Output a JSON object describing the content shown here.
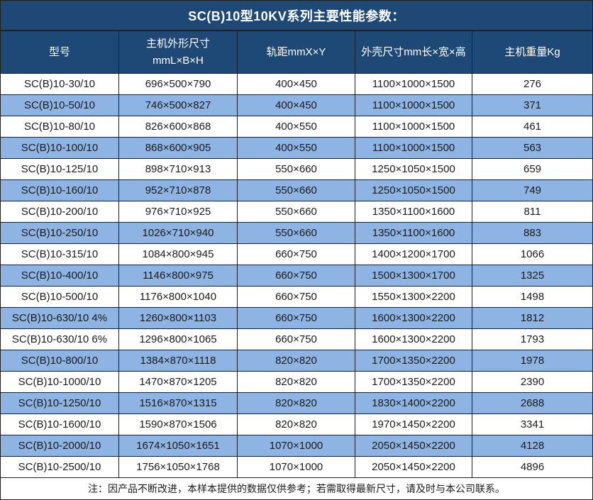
{
  "title": "SC(B)10型10KV系列主要性能参数：",
  "note": "注：因产品不断改进，本样本提供的数据仅供参考；若需取得最新尺寸，请及时与本公司联系。",
  "colors": {
    "header_bg": "#1E4976",
    "alt_row_bg": "#8DB4E2",
    "row_bg": "#FFFFFF",
    "grid_border": "#1F1F1F",
    "header_text": "#FFFFFF",
    "body_text": "#1A1A1A"
  },
  "table": {
    "headers": [
      "型号",
      "主机外形尺寸\nmmL×B×H",
      "轨距mmX×Y",
      "外壳尺寸mm长×宽×高",
      "主机重量Kg"
    ],
    "rows": [
      {
        "model": "SC(B)10-30/10",
        "machine_size": "696×500×790",
        "rail_gauge": "400×450",
        "shell_size": "1100×1000×1500",
        "weight": "276"
      },
      {
        "model": "SC(B)10-50/10",
        "machine_size": "746×500×827",
        "rail_gauge": "400×450",
        "shell_size": "1100×1000×1500",
        "weight": "371"
      },
      {
        "model": "SC(B)10-80/10",
        "machine_size": "826×600×868",
        "rail_gauge": "400×550",
        "shell_size": "1100×1000×1500",
        "weight": "461"
      },
      {
        "model": "SC(B)10-100/10",
        "machine_size": "868×600×905",
        "rail_gauge": "400×550",
        "shell_size": "1100×1000×1500",
        "weight": "563"
      },
      {
        "model": "SC(B)10-125/10",
        "machine_size": "898×710×913",
        "rail_gauge": "550×660",
        "shell_size": "1250×1050×1500",
        "weight": "659"
      },
      {
        "model": "SC(B)10-160/10",
        "machine_size": "952×710×878",
        "rail_gauge": "550×660",
        "shell_size": "1250×1050×1500",
        "weight": "749"
      },
      {
        "model": "SC(B)10-200/10",
        "machine_size": "976×710×925",
        "rail_gauge": "550×660",
        "shell_size": "1350×1100×1600",
        "weight": "811"
      },
      {
        "model": "SC(B)10-250/10",
        "machine_size": "1026×710×940",
        "rail_gauge": "550×660",
        "shell_size": "1350×1100×1600",
        "weight": "883"
      },
      {
        "model": "SC(B)10-315/10",
        "machine_size": "1084×800×945",
        "rail_gauge": "660×750",
        "shell_size": "1400×1200×1700",
        "weight": "1066"
      },
      {
        "model": "SC(B)10-400/10",
        "machine_size": "1146×800×975",
        "rail_gauge": "660×750",
        "shell_size": "1500×1300×1700",
        "weight": "1325"
      },
      {
        "model": "SC(B)10-500/10",
        "machine_size": "1176×800×1040",
        "rail_gauge": "660×750",
        "shell_size": "1550×1300×2200",
        "weight": "1498"
      },
      {
        "model": "SC(B)10-630/10 4%",
        "machine_size": "1260×800×1103",
        "rail_gauge": "660×750",
        "shell_size": "1600×1300×2200",
        "weight": "1812"
      },
      {
        "model": "SC(B)10-630/10 6%",
        "machine_size": "1296×800×1065",
        "rail_gauge": "660×750",
        "shell_size": "1600×1300×2200",
        "weight": "1793"
      },
      {
        "model": "SC(B)10-800/10",
        "machine_size": "1384×870×1118",
        "rail_gauge": "820×820",
        "shell_size": "1700×1350×2200",
        "weight": "1978"
      },
      {
        "model": "SC(B)10-1000/10",
        "machine_size": "1470×870×1205",
        "rail_gauge": "820×820",
        "shell_size": "1700×1350×2200",
        "weight": "2390"
      },
      {
        "model": "SC(B)10-1250/10",
        "machine_size": "1516×870×1315",
        "rail_gauge": "820×820",
        "shell_size": "1830×1400×2200",
        "weight": "2688"
      },
      {
        "model": "SC(B)10-1600/10",
        "machine_size": "1590×870×1506",
        "rail_gauge": "820×820",
        "shell_size": "1970×1450×2200",
        "weight": "3341"
      },
      {
        "model": "SC(B)10-2000/10",
        "machine_size": "1674×1050×1651",
        "rail_gauge": "1070×1000",
        "shell_size": "2050×1450×2200",
        "weight": "4128"
      },
      {
        "model": "SC(B)10-2500/10",
        "machine_size": "1756×1050×1768",
        "rail_gauge": "1070×1000",
        "shell_size": "2050×1450×2200",
        "weight": "4896"
      }
    ]
  }
}
